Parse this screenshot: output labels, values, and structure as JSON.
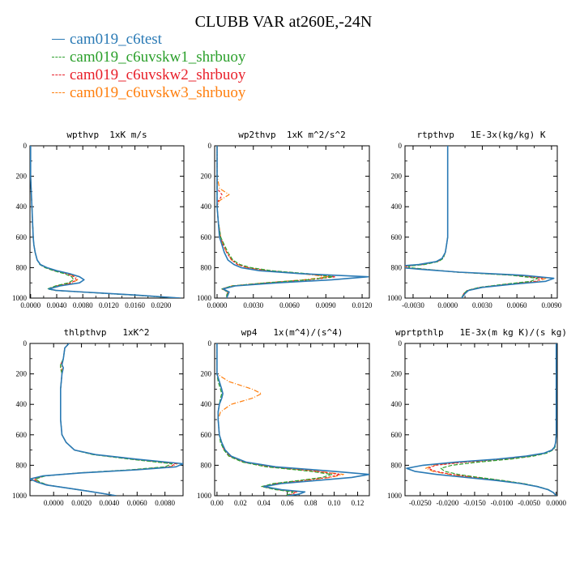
{
  "title": "CLUBB VAR at260E,-24N",
  "legend": [
    {
      "name": "cam019_c6test",
      "color": "#2a7ab5",
      "dash": ""
    },
    {
      "name": "cam019_c6uvskw1_shrbuoy",
      "color": "#2ca02c",
      "dash": "5,2"
    },
    {
      "name": "cam019_c6uvskw2_shrbuoy",
      "color": "#e8202a",
      "dash": "3,2"
    },
    {
      "name": "cam019_c6uvskw3_shrbuoy",
      "color": "#ff7f0e",
      "dash": "6,2,1,2"
    }
  ],
  "chart_data": [
    {
      "type": "line",
      "title": "wpthvp  1xK m/s",
      "xlim": [
        -0.0001,
        0.0235
      ],
      "ylim": [
        0,
        1000
      ],
      "y_inverted": true,
      "xticks": [
        0.0,
        0.004,
        0.008,
        0.012,
        0.016,
        0.02
      ],
      "xtick_labels": [
        "0.0000",
        "0.0040",
        "0.0080",
        "0.0120",
        "0.0160",
        "0.0200"
      ],
      "yticks": [
        0,
        200,
        400,
        600,
        800,
        1000
      ],
      "y": [
        0,
        100,
        200,
        300,
        400,
        500,
        600,
        650,
        700,
        750,
        780,
        800,
        820,
        840,
        860,
        880,
        900,
        920,
        940,
        950,
        960,
        980,
        1000
      ],
      "series": [
        {
          "name": "cam019_c6test",
          "x": [
            0,
            0,
            0,
            0.0001,
            0.0002,
            0.0003,
            0.0004,
            0.0005,
            0.0007,
            0.001,
            0.0015,
            0.0025,
            0.004,
            0.006,
            0.0075,
            0.0082,
            0.0075,
            0.0045,
            0.0028,
            0.004,
            0.008,
            0.016,
            0.023
          ]
        },
        {
          "name": "cam019_c6uvskw1_shrbuoy",
          "x": [
            0,
            0,
            0,
            0.0001,
            0.0002,
            0.0003,
            0.0004,
            0.0005,
            0.0007,
            0.001,
            0.0014,
            0.0022,
            0.0035,
            0.0052,
            0.0063,
            0.0066,
            0.0058,
            0.0038,
            0.0026,
            0.0038,
            0.0078,
            0.0155,
            0.0225
          ]
        },
        {
          "name": "cam019_c6uvskw2_shrbuoy",
          "x": [
            0,
            0,
            0,
            0.0001,
            0.0002,
            0.0003,
            0.0004,
            0.0005,
            0.0007,
            0.001,
            0.0015,
            0.0023,
            0.0037,
            0.0055,
            0.0067,
            0.007,
            0.0062,
            0.004,
            0.0027,
            0.0039,
            0.0079,
            0.0158,
            0.0228
          ]
        },
        {
          "name": "cam019_c6uvskw3_shrbuoy",
          "x": [
            0,
            0,
            0,
            0.0001,
            0.0002,
            0.0003,
            0.0004,
            0.0005,
            0.0007,
            0.001,
            0.0015,
            0.0024,
            0.0038,
            0.0057,
            0.0069,
            0.0072,
            0.0064,
            0.0041,
            0.0027,
            0.0039,
            0.008,
            0.016,
            0.023
          ]
        }
      ]
    },
    {
      "type": "line",
      "title": "wp2thvp  1xK m^2/s^2",
      "xlim": [
        -0.0002,
        0.0126
      ],
      "ylim": [
        0,
        1000
      ],
      "y_inverted": true,
      "xticks": [
        0.0,
        0.003,
        0.006,
        0.009,
        0.012
      ],
      "xtick_labels": [
        "0.0000",
        "0.0030",
        "0.0060",
        "0.0090",
        "0.0120"
      ],
      "yticks": [
        0,
        200,
        400,
        600,
        800,
        1000
      ],
      "y": [
        0,
        100,
        200,
        280,
        300,
        320,
        340,
        360,
        400,
        500,
        600,
        650,
        700,
        750,
        780,
        800,
        820,
        840,
        860,
        880,
        900,
        920,
        940,
        960,
        980,
        1000
      ],
      "series": [
        {
          "name": "cam019_c6test",
          "x": [
            0,
            0,
            0,
            0,
            0,
            0,
            0,
            0,
            0,
            0.0001,
            0.0002,
            0.0004,
            0.0006,
            0.0009,
            0.0014,
            0.002,
            0.0035,
            0.007,
            0.0125,
            0.0095,
            0.005,
            0.0015,
            0.0005,
            0.001,
            0.0009,
            0.0008
          ]
        },
        {
          "name": "cam019_c6uvskw1_shrbuoy",
          "x": [
            0,
            0,
            0,
            0,
            0,
            0,
            0,
            0,
            0,
            0.0001,
            0.0003,
            0.0006,
            0.0009,
            0.0013,
            0.0019,
            0.0028,
            0.0045,
            0.0075,
            0.0096,
            0.0075,
            0.004,
            0.0012,
            0.0004,
            0.0009,
            0.0008,
            0.0008
          ]
        },
        {
          "name": "cam019_c6uvskw2_shrbuoy",
          "x": [
            0,
            0,
            0,
            0,
            0.0002,
            0.0004,
            0.0003,
            0.0001,
            0,
            0.0001,
            0.0003,
            0.0005,
            0.0008,
            0.0012,
            0.0017,
            0.0025,
            0.0042,
            0.0072,
            0.0098,
            0.0077,
            0.0042,
            0.0013,
            0.0004,
            0.0009,
            0.0008,
            0.0008
          ]
        },
        {
          "name": "cam019_c6uvskw3_shrbuoy",
          "x": [
            0,
            0,
            0,
            0.0002,
            0.0006,
            0.001,
            0.0006,
            0.0002,
            0,
            0.0001,
            0.0003,
            0.0005,
            0.0008,
            0.0012,
            0.0017,
            0.0025,
            0.0041,
            0.007,
            0.0092,
            0.0072,
            0.0039,
            0.0012,
            0.0004,
            0.0009,
            0.0008,
            0.0008
          ]
        }
      ]
    },
    {
      "type": "line",
      "title": "rtpthvp   1E-3x(kg/kg) K",
      "xlim": [
        -0.0037,
        0.0095
      ],
      "ylim": [
        0,
        1000
      ],
      "y_inverted": true,
      "xticks": [
        -0.003,
        0.0,
        0.003,
        0.006,
        0.009
      ],
      "xtick_labels": [
        "-0.0030",
        "0.0000",
        "0.0030",
        "0.0060",
        "0.0090"
      ],
      "yticks": [
        0,
        200,
        400,
        600,
        800,
        1000
      ],
      "y": [
        0,
        100,
        200,
        300,
        400,
        500,
        600,
        650,
        700,
        740,
        760,
        780,
        790,
        800,
        810,
        830,
        850,
        870,
        890,
        910,
        930,
        950,
        970,
        1000
      ],
      "series": [
        {
          "name": "cam019_c6test",
          "x": [
            0,
            0,
            0,
            0,
            0,
            0,
            0,
            -0.0001,
            -0.0002,
            -0.0005,
            -0.001,
            -0.0025,
            -0.0042,
            -0.004,
            -0.0025,
            0.001,
            0.0065,
            0.0092,
            0.0085,
            0.0055,
            0.003,
            0.0018,
            0.0015,
            0.0012
          ]
        },
        {
          "name": "cam019_c6uvskw1_shrbuoy",
          "x": [
            0,
            0,
            0,
            0,
            0,
            0,
            0,
            -0.0001,
            -0.0002,
            -0.0004,
            -0.0008,
            -0.002,
            -0.0034,
            -0.0033,
            -0.002,
            0.0008,
            0.0055,
            0.0078,
            0.0072,
            0.0048,
            0.0027,
            0.0017,
            0.0014,
            0.0012
          ]
        },
        {
          "name": "cam019_c6uvskw2_shrbuoy",
          "x": [
            0,
            0,
            0,
            0,
            0,
            0,
            0,
            -0.0001,
            -0.0002,
            -0.0004,
            -0.0009,
            -0.0022,
            -0.0036,
            -0.0035,
            -0.0021,
            0.0009,
            0.0058,
            0.0082,
            0.0076,
            0.005,
            0.0028,
            0.0017,
            0.0014,
            0.0012
          ]
        },
        {
          "name": "cam019_c6uvskw3_shrbuoy",
          "x": [
            0,
            0,
            0,
            0,
            0,
            0,
            0,
            -0.0001,
            -0.0002,
            -0.0004,
            -0.0009,
            -0.0023,
            -0.0037,
            -0.0036,
            -0.0022,
            0.0009,
            0.006,
            0.0085,
            0.0078,
            0.0051,
            0.0028,
            0.0017,
            0.0014,
            0.0012
          ]
        }
      ]
    },
    {
      "type": "line",
      "title": "thlpthvp   1xK^2",
      "xlim": [
        -0.0017,
        0.0093
      ],
      "ylim": [
        0,
        1000
      ],
      "y_inverted": true,
      "xticks": [
        0.0,
        0.002,
        0.004,
        0.006,
        0.008
      ],
      "xtick_labels": [
        "0.0000",
        "0.0020",
        "0.0040",
        "0.0060",
        "0.0080"
      ],
      "yticks": [
        0,
        200,
        400,
        600,
        800,
        1000
      ],
      "y": [
        0,
        30,
        100,
        140,
        160,
        200,
        300,
        400,
        500,
        600,
        650,
        700,
        730,
        760,
        790,
        810,
        830,
        850,
        870,
        890,
        910,
        930,
        950,
        970,
        1000
      ],
      "series": [
        {
          "name": "cam019_c6test",
          "x": [
            0.0011,
            0.0008,
            0.0007,
            0.0006,
            0.0007,
            0.0006,
            0.0005,
            0.0005,
            0.0005,
            0.0006,
            0.0009,
            0.0015,
            0.003,
            0.006,
            0.0093,
            0.0088,
            0.006,
            0.002,
            -0.0008,
            -0.0017,
            -0.0012,
            -0.0005,
            0.001,
            0.0025,
            0.0045
          ]
        },
        {
          "name": "cam019_c6uvskw1_shrbuoy",
          "x": [
            0.0011,
            0.0008,
            0.0007,
            0.0005,
            0.0005,
            0.0006,
            0.0005,
            0.0005,
            0.0005,
            0.0006,
            0.0009,
            0.0015,
            0.0028,
            0.0055,
            0.0085,
            0.008,
            0.0055,
            0.0018,
            -0.0006,
            -0.0013,
            -0.001,
            -0.0004,
            0.001,
            0.0025,
            0.0045
          ]
        },
        {
          "name": "cam019_c6uvskw2_shrbuoy",
          "x": [
            0.0011,
            0.0008,
            0.0007,
            0.0005,
            0.0005,
            0.0006,
            0.0005,
            0.0005,
            0.0005,
            0.0006,
            0.0009,
            0.0015,
            0.0029,
            0.0057,
            0.0088,
            0.0083,
            0.0057,
            0.0019,
            -0.0007,
            -0.0014,
            -0.0011,
            -0.0004,
            0.001,
            0.0025,
            0.0045
          ]
        },
        {
          "name": "cam019_c6uvskw3_shrbuoy",
          "x": [
            0.0011,
            0.0008,
            0.0007,
            0.0006,
            0.0006,
            0.0006,
            0.0005,
            0.0005,
            0.0005,
            0.0006,
            0.0009,
            0.0015,
            0.0029,
            0.0058,
            0.0089,
            0.0084,
            0.0058,
            0.0019,
            -0.0007,
            -0.0015,
            -0.0011,
            -0.0005,
            0.001,
            0.0025,
            0.0045
          ]
        }
      ]
    },
    {
      "type": "line",
      "title": "wp4   1x(m^4)/(s^4)",
      "xlim": [
        -0.002,
        0.13
      ],
      "ylim": [
        0,
        1000
      ],
      "y_inverted": true,
      "xticks": [
        0.0,
        0.02,
        0.04,
        0.06,
        0.08,
        0.1,
        0.12
      ],
      "xtick_labels": [
        "0.00",
        "0.02",
        "0.04",
        "0.06",
        "0.08",
        "0.10",
        "0.12"
      ],
      "yticks": [
        0,
        200,
        400,
        600,
        800,
        1000
      ],
      "y": [
        0,
        100,
        200,
        250,
        300,
        330,
        360,
        400,
        450,
        500,
        600,
        650,
        700,
        740,
        780,
        810,
        840,
        860,
        880,
        900,
        920,
        940,
        960,
        975,
        990,
        1000
      ],
      "series": [
        {
          "name": "cam019_c6test",
          "x": [
            0,
            0,
            0,
            0.002,
            0.004,
            0.005,
            0.004,
            0.002,
            0.001,
            0.001,
            0.002,
            0.004,
            0.007,
            0.012,
            0.025,
            0.05,
            0.1,
            0.13,
            0.115,
            0.085,
            0.055,
            0.04,
            0.055,
            0.075,
            0.07,
            0.06
          ]
        },
        {
          "name": "cam019_c6uvskw1_shrbuoy",
          "x": [
            0,
            0,
            0,
            0.001,
            0.003,
            0.004,
            0.003,
            0.002,
            0.001,
            0.001,
            0.002,
            0.003,
            0.006,
            0.01,
            0.022,
            0.042,
            0.08,
            0.098,
            0.09,
            0.07,
            0.048,
            0.038,
            0.05,
            0.065,
            0.062,
            0.058
          ]
        },
        {
          "name": "cam019_c6uvskw2_shrbuoy",
          "x": [
            0,
            0,
            0,
            0.002,
            0.004,
            0.005,
            0.004,
            0.002,
            0.001,
            0.001,
            0.002,
            0.004,
            0.006,
            0.011,
            0.023,
            0.045,
            0.085,
            0.105,
            0.095,
            0.073,
            0.05,
            0.039,
            0.052,
            0.068,
            0.064,
            0.059
          ]
        },
        {
          "name": "cam019_c6uvskw3_shrbuoy",
          "x": [
            0,
            0,
            0,
            0.01,
            0.03,
            0.038,
            0.03,
            0.012,
            0.003,
            0.001,
            0.002,
            0.004,
            0.006,
            0.011,
            0.023,
            0.045,
            0.087,
            0.108,
            0.097,
            0.075,
            0.051,
            0.039,
            0.052,
            0.068,
            0.064,
            0.059
          ]
        }
      ]
    },
    {
      "type": "line",
      "title": "wprtpthlp   1E-3x(m kg K)/(s kg)",
      "xlim": [
        -0.0278,
        0.0002
      ],
      "ylim": [
        0,
        1000
      ],
      "y_inverted": true,
      "xticks": [
        -0.025,
        -0.02,
        -0.015,
        -0.01,
        -0.005,
        0.0
      ],
      "xtick_labels": [
        "-0.0250",
        "-0.0200",
        "-0.0150",
        "-0.0100",
        "-0.0050",
        "0.0000"
      ],
      "yticks": [
        0,
        200,
        400,
        600,
        800,
        1000
      ],
      "y": [
        0,
        100,
        200,
        300,
        400,
        500,
        600,
        650,
        680,
        700,
        720,
        740,
        760,
        780,
        800,
        820,
        840,
        860,
        880,
        900,
        920,
        940,
        960,
        980,
        1000
      ],
      "series": [
        {
          "name": "cam019_c6test",
          "x": [
            0,
            0,
            0,
            0,
            0,
            0,
            0,
            -0.0001,
            -0.0003,
            -0.0008,
            -0.0022,
            -0.0055,
            -0.011,
            -0.0185,
            -0.0245,
            -0.0275,
            -0.026,
            -0.022,
            -0.0165,
            -0.011,
            -0.0065,
            -0.0035,
            -0.0015,
            -0.0005,
            0
          ]
        },
        {
          "name": "cam019_c6uvskw1_shrbuoy",
          "x": [
            0,
            0,
            0,
            0,
            0,
            0,
            0,
            -0.0001,
            -0.0002,
            -0.0006,
            -0.0017,
            -0.0042,
            -0.0085,
            -0.0145,
            -0.0192,
            -0.0212,
            -0.0205,
            -0.018,
            -0.0142,
            -0.0098,
            -0.006,
            -0.0033,
            -0.0014,
            -0.0005,
            0
          ]
        },
        {
          "name": "cam019_c6uvskw2_shrbuoy",
          "x": [
            0,
            0,
            0,
            0,
            0,
            0,
            0,
            -0.0001,
            -0.0003,
            -0.0007,
            -0.002,
            -0.0048,
            -0.0098,
            -0.0168,
            -0.0222,
            -0.0235,
            -0.0222,
            -0.0192,
            -0.015,
            -0.0102,
            -0.0062,
            -0.0034,
            -0.0015,
            -0.0005,
            0
          ]
        },
        {
          "name": "cam019_c6uvskw3_shrbuoy",
          "x": [
            0,
            0,
            0,
            0,
            0,
            0,
            0,
            -0.0001,
            -0.0003,
            -0.0007,
            -0.002,
            -0.005,
            -0.01,
            -0.0172,
            -0.0226,
            -0.024,
            -0.0226,
            -0.0195,
            -0.0152,
            -0.0104,
            -0.0063,
            -0.0034,
            -0.0015,
            -0.0005,
            0
          ]
        }
      ]
    }
  ]
}
